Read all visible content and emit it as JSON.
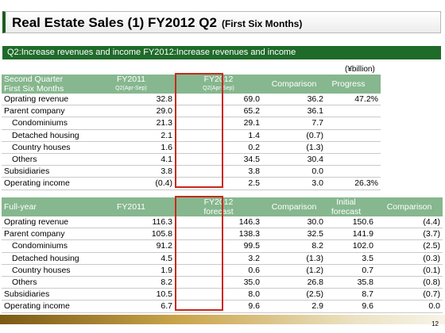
{
  "title": {
    "main": "Real Estate Sales (1) FY2012 Q2",
    "sub": "(First Six Months)"
  },
  "banner": "Q2:Increase revenues and income FY2012:Increase revenues and income",
  "unit": "(¥billion)",
  "q2": {
    "header": {
      "label1": "Second Quarter",
      "label2": "First Six Months",
      "fy2011": "FY2011",
      "fy2011_sub": "Q2(Apr-Sep)",
      "fy2012": "FY2012",
      "fy2012_sub": "Q2(Apr-Sep)",
      "comparison": "Comparison",
      "progress": "Progress"
    },
    "rows": [
      {
        "label": "Oprating revenue",
        "fy2011": "32.8",
        "fy2012": "69.0",
        "comp": "36.2",
        "progress": "47.2%"
      },
      {
        "label": "Parent company",
        "fy2011": "29.0",
        "fy2012": "65.2",
        "comp": "36.1",
        "progress": ""
      },
      {
        "label": "Condominiums",
        "fy2011": "21.3",
        "fy2012": "29.1",
        "comp": "7.7",
        "progress": ""
      },
      {
        "label": "Detached housing",
        "fy2011": "2.1",
        "fy2012": "1.4",
        "comp": "(0.7)",
        "progress": ""
      },
      {
        "label": "Country houses",
        "fy2011": "1.6",
        "fy2012": "0.2",
        "comp": "(1.3)",
        "progress": ""
      },
      {
        "label": "Others",
        "fy2011": "4.1",
        "fy2012": "34.5",
        "comp": "30.4",
        "progress": ""
      },
      {
        "label": "Subsidiaries",
        "fy2011": "3.8",
        "fy2012": "3.8",
        "comp": "0.0",
        "progress": ""
      },
      {
        "label": "Operating income",
        "fy2011": "(0.4)",
        "fy2012": "2.5",
        "comp": "3.0",
        "progress": "26.3%"
      }
    ]
  },
  "fy": {
    "header": {
      "label": "Full-year",
      "fy2011": "FY2011",
      "fy2012a": "FY2012",
      "fy2012b": "forecast",
      "comparison": "Comparison",
      "initial_a": "Initial",
      "initial_b": "forecast",
      "comparison2": "Comparison"
    },
    "rows": [
      {
        "label": "Oprating revenue",
        "fy2011": "116.3",
        "fy2012": "146.3",
        "comp": "30.0",
        "init": "150.6",
        "comp2": "(4.4)"
      },
      {
        "label": "Parent company",
        "fy2011": "105.8",
        "fy2012": "138.3",
        "comp": "32.5",
        "init": "141.9",
        "comp2": "(3.7)"
      },
      {
        "label": "Condominiums",
        "fy2011": "91.2",
        "fy2012": "99.5",
        "comp": "8.2",
        "init": "102.0",
        "comp2": "(2.5)"
      },
      {
        "label": "Detached housing",
        "fy2011": "4.5",
        "fy2012": "3.2",
        "comp": "(1.3)",
        "init": "3.5",
        "comp2": "(0.3)"
      },
      {
        "label": "Country houses",
        "fy2011": "1.9",
        "fy2012": "0.6",
        "comp": "(1.2)",
        "init": "0.7",
        "comp2": "(0.1)"
      },
      {
        "label": "Others",
        "fy2011": "8.2",
        "fy2012": "35.0",
        "comp": "26.8",
        "init": "35.8",
        "comp2": "(0.8)"
      },
      {
        "label": "Subsidiaries",
        "fy2011": "10.5",
        "fy2012": "8.0",
        "comp": "(2.5)",
        "init": "8.7",
        "comp2": "(0.7)"
      },
      {
        "label": "Operating income",
        "fy2011": "6.7",
        "fy2012": "9.6",
        "comp": "2.9",
        "init": "9.6",
        "comp2": "0.0"
      }
    ]
  },
  "page_number": "12",
  "colors": {
    "banner": "#1f6b2a",
    "header": "#86b78e",
    "highlight": "#c8291d"
  }
}
